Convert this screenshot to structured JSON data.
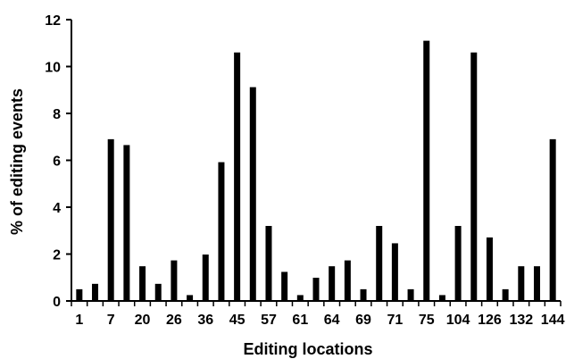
{
  "chart_data": {
    "type": "bar",
    "xlabel": "Editing locations",
    "ylabel": "% of editing events",
    "ylim": [
      0,
      12
    ],
    "yticks": [
      0,
      2,
      4,
      6,
      8,
      10,
      12
    ],
    "x_tick_labels": [
      "1",
      "7",
      "20",
      "26",
      "36",
      "45",
      "57",
      "61",
      "64",
      "69",
      "71",
      "75",
      "104",
      "126",
      "132",
      "144"
    ],
    "values": [
      0.5,
      0.73,
      6.9,
      6.65,
      1.48,
      0.73,
      1.73,
      0.25,
      1.98,
      5.92,
      10.6,
      9.12,
      3.2,
      1.24,
      0.25,
      0.99,
      1.48,
      1.73,
      0.5,
      3.2,
      2.46,
      0.5,
      11.1,
      0.25,
      3.2,
      10.6,
      2.71,
      0.5,
      1.48,
      1.48,
      6.9
    ],
    "bar_color": "#000000",
    "grid": false,
    "legend": "none"
  }
}
